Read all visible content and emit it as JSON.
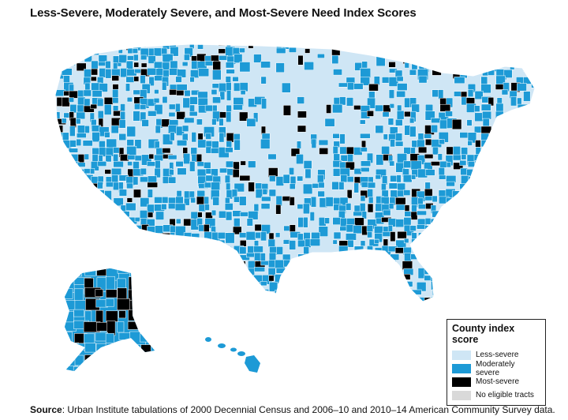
{
  "title": "Less-Severe, Moderately Severe, and Most-Severe Need Index Scores",
  "legend": {
    "title": "County index score",
    "items": [
      {
        "label": "Less-severe",
        "color": "#cfe6f5"
      },
      {
        "label": "Moderately severe",
        "color": "#1d9ad6"
      },
      {
        "label": "Most-severe",
        "color": "#000000"
      },
      {
        "label": "No eligible tracts",
        "color": "#d9d9d9"
      }
    ]
  },
  "source": {
    "label": "Source",
    "text": ": Urban Institute tabulations of 2000 Decennial Census and 2006–10 and 2010–14 American Community Survey data."
  },
  "colors": {
    "less": "#cfe6f5",
    "moderate": "#1d9ad6",
    "most": "#000000",
    "border": "#ffffff"
  }
}
